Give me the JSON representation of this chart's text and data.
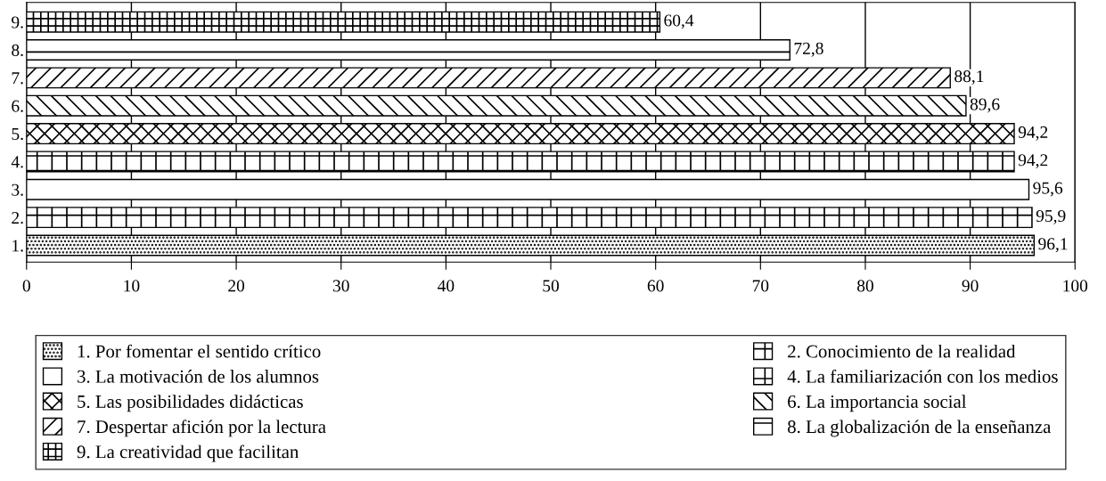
{
  "chart_data": {
    "type": "bar",
    "orientation": "horizontal",
    "categories": [
      "9.",
      "8.",
      "7.",
      "6.",
      "5.",
      "4.",
      "3.",
      "2.",
      "1."
    ],
    "series": [
      {
        "name": "1. Por fomentar el sentido crítico",
        "color": "#000000",
        "values": [
          null,
          null,
          null,
          null,
          null,
          null,
          null,
          null,
          96.1
        ],
        "value_labels": [
          null,
          null,
          null,
          null,
          null,
          null,
          null,
          null,
          "96,1"
        ]
      },
      {
        "name": "2. Conocimiento de la realidad",
        "color": "#000000",
        "values": [
          null,
          null,
          null,
          null,
          null,
          null,
          null,
          95.9,
          null
        ],
        "value_labels": [
          null,
          null,
          null,
          null,
          null,
          null,
          null,
          "95,9",
          null
        ]
      },
      {
        "name": "3. La motivación de los alumnos",
        "color": "#ffffff",
        "values": [
          null,
          null,
          null,
          null,
          null,
          null,
          95.6,
          null,
          null
        ],
        "value_labels": [
          null,
          null,
          null,
          null,
          null,
          null,
          "95,6",
          null,
          null
        ]
      },
      {
        "name": "4. La familiarización con los medios",
        "color": "#000000",
        "values": [
          null,
          null,
          null,
          null,
          null,
          94.2,
          null,
          null,
          null
        ],
        "value_labels": [
          null,
          null,
          null,
          null,
          null,
          "94,2",
          null,
          null,
          null
        ]
      },
      {
        "name": "5. Las posibilidades didácticas",
        "color": "#000000",
        "values": [
          null,
          null,
          null,
          null,
          94.2,
          null,
          null,
          null,
          null
        ],
        "value_labels": [
          null,
          null,
          null,
          null,
          "94,2",
          null,
          null,
          null,
          null
        ]
      },
      {
        "name": "6. La importancia social",
        "color": "#000000",
        "values": [
          null,
          null,
          null,
          89.6,
          null,
          null,
          null,
          null,
          null
        ],
        "value_labels": [
          null,
          null,
          null,
          "89,6",
          null,
          null,
          null,
          null,
          null
        ]
      },
      {
        "name": "7. Despertar afición por la lectura",
        "color": "#000000",
        "values": [
          null,
          null,
          88.1,
          null,
          null,
          null,
          null,
          null,
          null
        ],
        "value_labels": [
          null,
          null,
          "88,1",
          null,
          null,
          null,
          null,
          null,
          null
        ]
      },
      {
        "name": "8. La globalización de la enseñanza",
        "color": "#000000",
        "values": [
          null,
          72.8,
          null,
          null,
          null,
          null,
          null,
          null,
          null
        ],
        "value_labels": [
          null,
          "72,8",
          null,
          null,
          null,
          null,
          null,
          null,
          null
        ]
      },
      {
        "name": "9. La creatividad que facilitan",
        "color": "#000000",
        "values": [
          60.4,
          null,
          null,
          null,
          null,
          null,
          null,
          null,
          null
        ],
        "value_labels": [
          "60,4",
          null,
          null,
          null,
          null,
          null,
          null,
          null,
          null
        ]
      }
    ],
    "xlim": [
      0,
      100
    ],
    "xticks": [
      0,
      10,
      20,
      30,
      40,
      50,
      60,
      70,
      80,
      90,
      100
    ],
    "grid": "x",
    "legend": "bottom"
  }
}
